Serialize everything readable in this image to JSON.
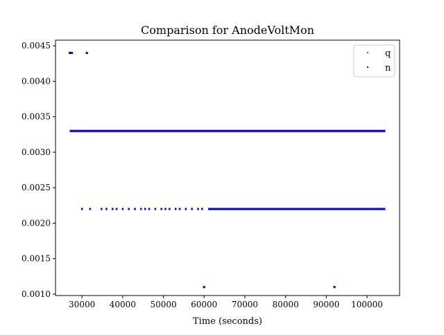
{
  "chart_data": {
    "type": "scatter",
    "title": "Comparison for AnodeVoltMon",
    "xlabel": "Time (seconds)",
    "ylabel": "",
    "xlim": [
      23500,
      108000
    ],
    "ylim": [
      0.00098,
      0.00458
    ],
    "xticks": [
      30000,
      40000,
      50000,
      60000,
      70000,
      80000,
      90000,
      100000
    ],
    "xtick_labels": [
      "30000",
      "40000",
      "50000",
      "60000",
      "70000",
      "80000",
      "90000",
      "100000"
    ],
    "yticks": [
      0.001,
      0.0015,
      0.002,
      0.0025,
      0.003,
      0.0035,
      0.004,
      0.0045
    ],
    "ytick_labels": [
      "0.0010",
      "0.0015",
      "0.0020",
      "0.0025",
      "0.0030",
      "0.0035",
      "0.0040",
      "0.0045"
    ],
    "grid": false,
    "legend_position": "top-right",
    "series": [
      {
        "name": "q",
        "color": "#d62728",
        "points": [
          {
            "x": 27000,
            "y": 0.0044
          },
          {
            "x": 27500,
            "y": 0.0044
          },
          {
            "x": 31200,
            "y": 0.0044
          },
          {
            "x": 60000,
            "y": 0.0011
          },
          {
            "x": 92000,
            "y": 0.0011
          }
        ],
        "bands": [
          {
            "y": 0.0033,
            "x_start": 27000,
            "x_end": 104500
          },
          {
            "y": 0.0022,
            "x_start": 61000,
            "x_end": 104500
          }
        ],
        "clusters": [
          {
            "y": 0.0022,
            "x": [
              30000,
              32000,
              34800,
              36000,
              37500,
              38500,
              40000,
              41500,
              43000,
              44500,
              45500,
              46500,
              48000,
              49500,
              50500,
              51500,
              53000,
              54000,
              55500,
              57000,
              58500,
              59500
            ]
          }
        ]
      },
      {
        "name": "n",
        "color": "#0000ff",
        "points": [
          {
            "x": 27000,
            "y": 0.0044
          },
          {
            "x": 27500,
            "y": 0.0044
          },
          {
            "x": 31200,
            "y": 0.0044
          },
          {
            "x": 60000,
            "y": 0.0011
          },
          {
            "x": 92000,
            "y": 0.0011
          }
        ],
        "bands": [
          {
            "y": 0.0033,
            "x_start": 27000,
            "x_end": 104500
          },
          {
            "y": 0.0022,
            "x_start": 61000,
            "x_end": 104500
          }
        ],
        "clusters": [
          {
            "y": 0.0022,
            "x": [
              30000,
              32000,
              34800,
              36000,
              37500,
              38500,
              40000,
              41500,
              43000,
              44500,
              45500,
              46500,
              48000,
              49500,
              50500,
              51500,
              53000,
              54000,
              55500,
              57000,
              58500,
              59500
            ]
          }
        ]
      }
    ]
  }
}
